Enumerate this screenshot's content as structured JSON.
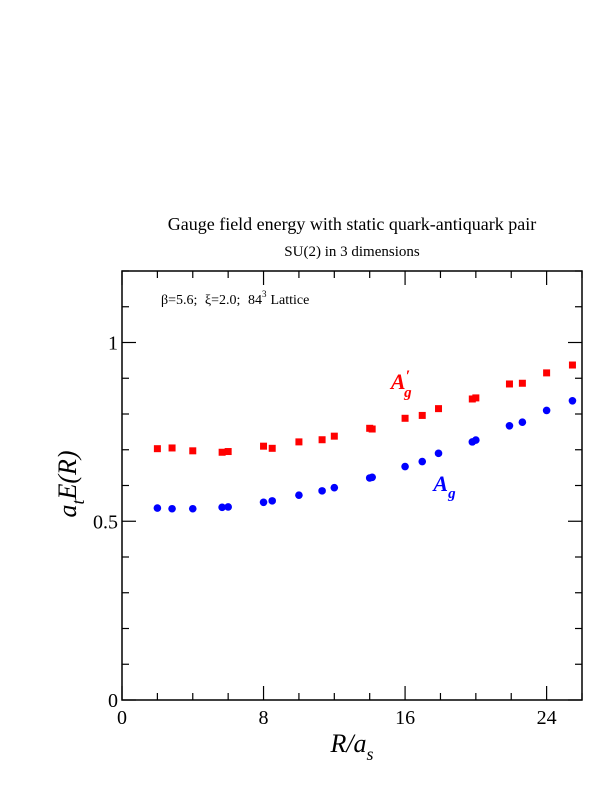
{
  "chart_data": {
    "type": "scatter",
    "title": "Gauge field energy with static quark-antiquark pair",
    "subtitle": "SU(2) in 3 dimensions",
    "annotation": {
      "beta": "β=5.6;",
      "xi": "ξ=2.0;",
      "lattice_base": "84",
      "lattice_exp": "3",
      "lattice_word": "Lattice"
    },
    "xlabel": {
      "main": "R/a",
      "sub": "s"
    },
    "ylabel": {
      "main": "a",
      "sub": "t",
      "rest": "E(R)"
    },
    "xlim": [
      0,
      26
    ],
    "ylim": [
      0,
      1.2
    ],
    "x_ticks": [
      {
        "value": 0,
        "label": "0"
      },
      {
        "value": 8,
        "label": "8"
      },
      {
        "value": 16,
        "label": "16"
      },
      {
        "value": 24,
        "label": "24"
      }
    ],
    "y_ticks": [
      {
        "value": 0,
        "label": "0"
      },
      {
        "value": 0.5,
        "label": "0.5"
      },
      {
        "value": 1,
        "label": "1"
      }
    ],
    "grid": false,
    "series": [
      {
        "label_main": "A",
        "label_sub": "g",
        "label_prime": "′",
        "color": "#ff0000",
        "marker": "square",
        "label_pos": [
          15.2,
          0.87
        ],
        "points": [
          [
            2.0,
            0.703
          ],
          [
            2.83,
            0.705
          ],
          [
            4.0,
            0.697
          ],
          [
            5.66,
            0.693
          ],
          [
            6.0,
            0.695
          ],
          [
            8.0,
            0.71
          ],
          [
            8.49,
            0.704
          ],
          [
            10.0,
            0.722
          ],
          [
            11.31,
            0.728
          ],
          [
            12.0,
            0.738
          ],
          [
            14.0,
            0.76
          ],
          [
            14.14,
            0.758
          ],
          [
            16.0,
            0.788
          ],
          [
            16.97,
            0.796
          ],
          [
            17.89,
            0.815
          ],
          [
            19.8,
            0.842
          ],
          [
            20.0,
            0.845
          ],
          [
            21.9,
            0.884
          ],
          [
            22.63,
            0.886
          ],
          [
            24.0,
            0.915
          ],
          [
            25.46,
            0.937
          ]
        ]
      },
      {
        "label_main": "A",
        "label_sub": "g",
        "label_prime": "",
        "color": "#0000ff",
        "marker": "circle",
        "label_pos": [
          17.6,
          0.585
        ],
        "points": [
          [
            2.0,
            0.537
          ],
          [
            2.83,
            0.535
          ],
          [
            4.0,
            0.535
          ],
          [
            5.66,
            0.539
          ],
          [
            6.0,
            0.54
          ],
          [
            8.0,
            0.553
          ],
          [
            8.49,
            0.557
          ],
          [
            10.0,
            0.573
          ],
          [
            11.31,
            0.585
          ],
          [
            12.0,
            0.594
          ],
          [
            14.0,
            0.621
          ],
          [
            14.14,
            0.623
          ],
          [
            16.0,
            0.653
          ],
          [
            16.97,
            0.667
          ],
          [
            17.89,
            0.69
          ],
          [
            19.8,
            0.722
          ],
          [
            20.0,
            0.727
          ],
          [
            21.9,
            0.767
          ],
          [
            22.63,
            0.777
          ],
          [
            24.0,
            0.81
          ],
          [
            25.46,
            0.837
          ]
        ]
      }
    ]
  }
}
